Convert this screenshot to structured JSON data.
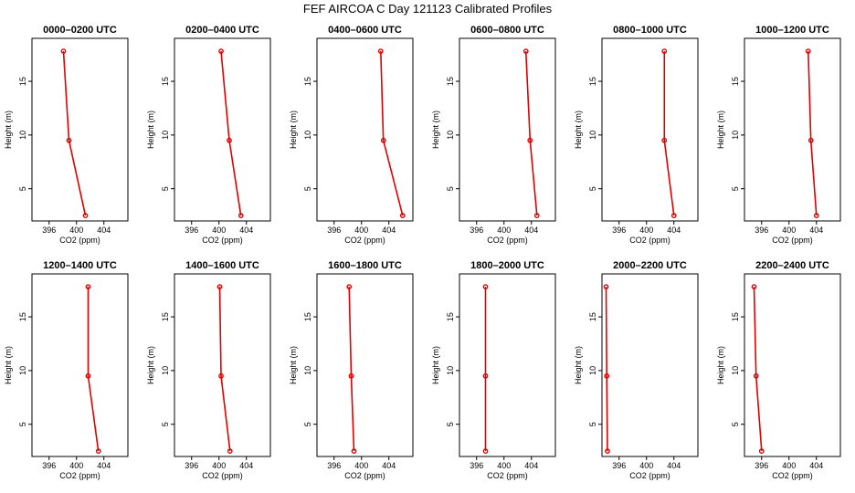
{
  "chart_data": {
    "type": "line",
    "title": "FEF AIRCOA C  Day 121123  Calibrated Profiles",
    "xlabel": "CO2 (ppm)",
    "ylabel": "Height (m)",
    "xlim": [
      393.5,
      407.5
    ],
    "ylim": [
      2,
      19
    ],
    "xticks": [
      "396",
      "400",
      "404"
    ],
    "yticks": [
      "5",
      "10",
      "15"
    ],
    "heights": [
      2.5,
      9.5,
      17.8
    ],
    "panels": [
      {
        "title": "0000–0200 UTC",
        "co2": [
          401.3,
          398.9,
          398.1
        ]
      },
      {
        "title": "0200–0400 UTC",
        "co2": [
          403.2,
          401.5,
          400.3
        ]
      },
      {
        "title": "0400–0600 UTC",
        "co2": [
          406.0,
          403.2,
          402.8
        ]
      },
      {
        "title": "0600–0800 UTC",
        "co2": [
          404.8,
          403.8,
          403.2
        ]
      },
      {
        "title": "0800–1000 UTC",
        "co2": [
          404.0,
          402.6,
          402.6
        ]
      },
      {
        "title": "1000–1200 UTC",
        "co2": [
          404.0,
          403.2,
          402.8
        ]
      },
      {
        "title": "1200–1400 UTC",
        "co2": [
          403.2,
          401.7,
          401.7
        ]
      },
      {
        "title": "1400–1600 UTC",
        "co2": [
          401.6,
          400.3,
          400.1
        ]
      },
      {
        "title": "1600–1800 UTC",
        "co2": [
          398.9,
          398.5,
          398.2
        ]
      },
      {
        "title": "1800–2000 UTC",
        "co2": [
          397.3,
          397.3,
          397.3
        ]
      },
      {
        "title": "2000–2200 UTC",
        "co2": [
          394.3,
          394.2,
          394.1
        ]
      },
      {
        "title": "2200–2400 UTC",
        "co2": [
          396.0,
          395.2,
          394.9
        ]
      }
    ]
  }
}
